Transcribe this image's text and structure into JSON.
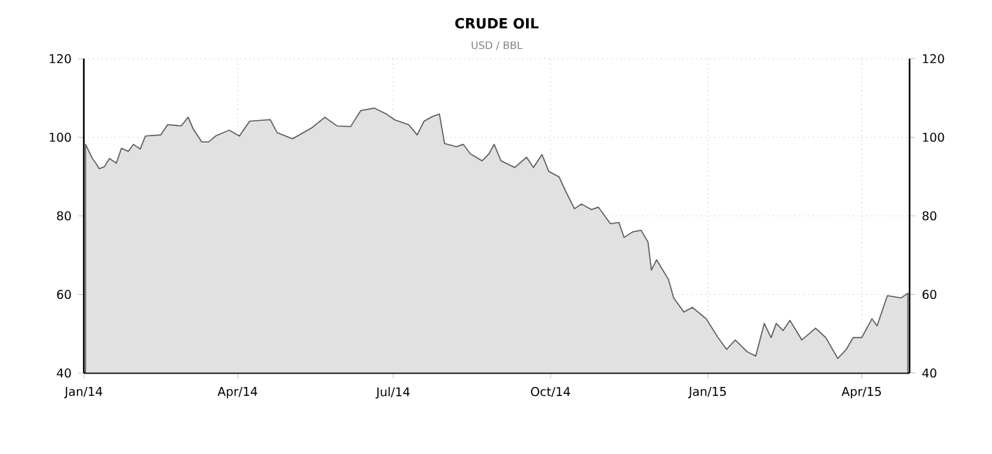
{
  "chart_data": {
    "type": "area",
    "title": "CRUDE OIL",
    "subtitle": "USD / BBL",
    "x": [
      "2014-01-02",
      "2014-01-06",
      "2014-01-08",
      "2014-01-10",
      "2014-01-13",
      "2014-01-16",
      "2014-01-20",
      "2014-01-23",
      "2014-01-27",
      "2014-01-30",
      "2014-02-03",
      "2014-02-06",
      "2014-02-15",
      "2014-02-19",
      "2014-02-27",
      "2014-03-03",
      "2014-03-06",
      "2014-03-11",
      "2014-03-15",
      "2014-03-19",
      "2014-03-27",
      "2014-04-02",
      "2014-04-08",
      "2014-04-20",
      "2014-04-24",
      "2014-05-03",
      "2014-05-14",
      "2014-05-22",
      "2014-05-29",
      "2014-06-06",
      "2014-06-12",
      "2014-06-20",
      "2014-06-27",
      "2014-07-02",
      "2014-07-10",
      "2014-07-15",
      "2014-07-19",
      "2014-07-24",
      "2014-07-28",
      "2014-07-31",
      "2014-08-07",
      "2014-08-11",
      "2014-08-15",
      "2014-08-22",
      "2014-08-26",
      "2014-08-29",
      "2014-09-02",
      "2014-09-10",
      "2014-09-17",
      "2014-09-21",
      "2014-09-26",
      "2014-09-30",
      "2014-10-06",
      "2014-10-10",
      "2014-10-15",
      "2014-10-19",
      "2014-10-25",
      "2014-10-29",
      "2014-11-05",
      "2014-11-10",
      "2014-11-13",
      "2014-11-18",
      "2014-11-23",
      "2014-11-27",
      "2014-11-29",
      "2014-12-02",
      "2014-12-09",
      "2014-12-12",
      "2014-12-18",
      "2014-12-23",
      "2014-12-31",
      "2015-01-07",
      "2015-01-12",
      "2015-01-17",
      "2015-01-24",
      "2015-01-29",
      "2015-02-03",
      "2015-02-07",
      "2015-02-10",
      "2015-02-14",
      "2015-02-18",
      "2015-02-25",
      "2015-03-05",
      "2015-03-11",
      "2015-03-18",
      "2015-03-23",
      "2015-03-27",
      "2015-04-01",
      "2015-04-07",
      "2015-04-10",
      "2015-04-16",
      "2015-04-24",
      "2015-04-28"
    ],
    "series": [
      {
        "color": "#5a5a5a",
        "values": [
          98.2,
          94.6,
          93.4,
          92.0,
          92.5,
          94.6,
          93.4,
          97.2,
          96.4,
          98.2,
          97.0,
          100.3,
          100.6,
          103.2,
          102.9,
          105.1,
          102.1,
          98.8,
          98.8,
          100.3,
          101.8,
          100.3,
          104.1,
          104.5,
          101.2,
          99.6,
          102.3,
          105.1,
          102.9,
          102.7,
          106.8,
          107.4,
          105.9,
          104.4,
          103.2,
          100.6,
          104.1,
          105.3,
          105.9,
          98.4,
          97.6,
          98.2,
          95.8,
          94.0,
          95.8,
          98.2,
          94.0,
          92.3,
          94.9,
          92.3,
          95.6,
          91.3,
          89.9,
          86.1,
          81.8,
          83.0,
          81.6,
          82.2,
          78.0,
          78.3,
          74.5,
          75.9,
          76.3,
          73.3,
          66.2,
          68.8,
          63.8,
          59.1,
          55.5,
          56.7,
          53.8,
          49.0,
          46.0,
          48.4,
          45.4,
          44.3,
          52.6,
          49.0,
          52.6,
          50.8,
          53.4,
          48.4,
          51.4,
          49.0,
          43.7,
          46.0,
          49.0,
          49.0,
          53.8,
          52.0,
          59.7,
          59.1,
          60.3
        ]
      }
    ],
    "xlim": [
      "2014-01-01",
      "2015-04-29"
    ],
    "xticks": [
      {
        "value": "2014-01-01",
        "label": "Jan/14"
      },
      {
        "value": "2014-04-01",
        "label": "Apr/14"
      },
      {
        "value": "2014-07-01",
        "label": "Jul/14"
      },
      {
        "value": "2014-10-01",
        "label": "Oct/14"
      },
      {
        "value": "2015-01-01",
        "label": "Jan/15"
      },
      {
        "value": "2015-04-01",
        "label": "Apr/15"
      }
    ],
    "ylim": [
      40,
      120
    ],
    "yticks": [
      40,
      60,
      80,
      100,
      120
    ],
    "y2lim": [
      40,
      120
    ],
    "y2ticks": [
      40,
      60,
      80,
      100,
      120
    ],
    "grid": true
  }
}
